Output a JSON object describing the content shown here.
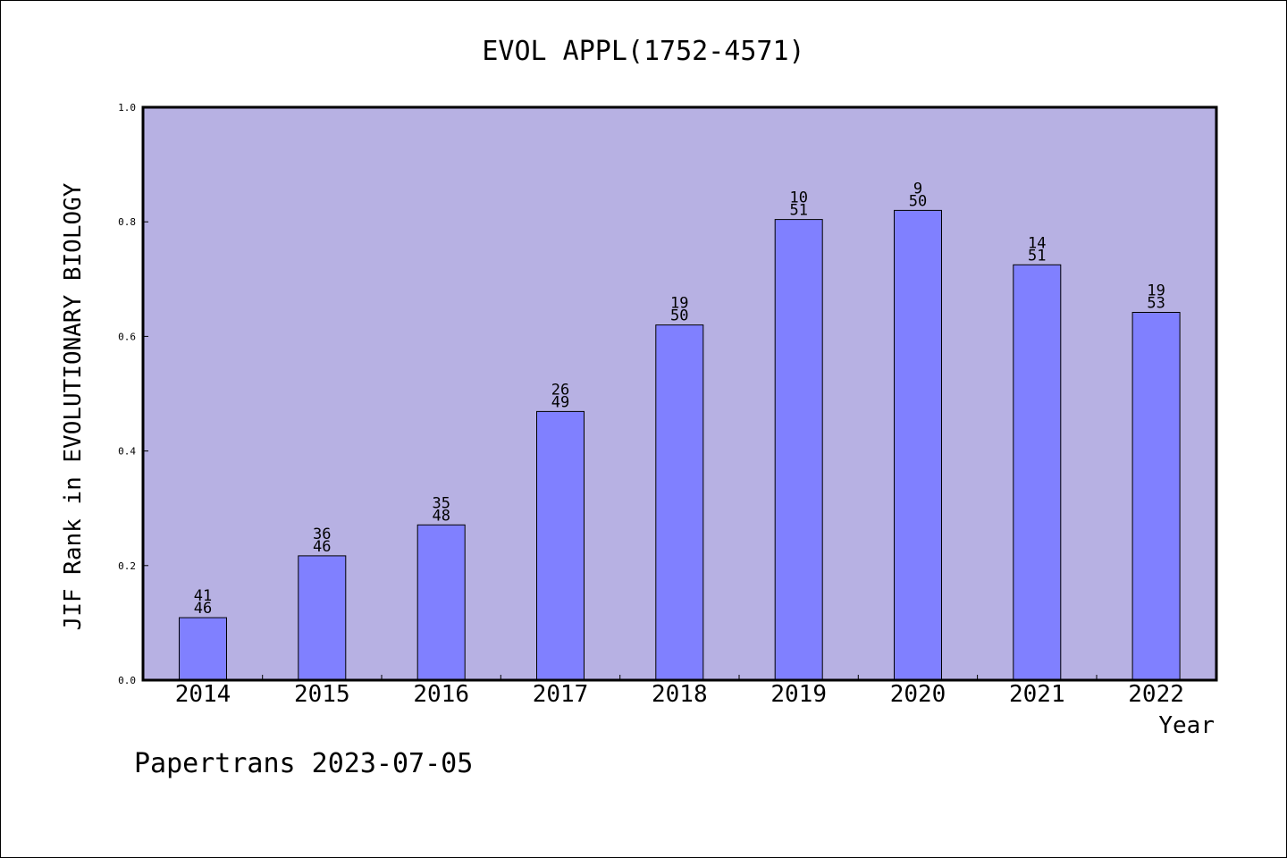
{
  "chart_data": {
    "type": "bar",
    "title": "EVOL APPL(1752-4571)",
    "xlabel": "Year",
    "ylabel": "JIF Rank in EVOLUTIONARY BIOLOGY",
    "ylim": [
      0,
      1.0
    ],
    "yticks": [
      "0.0",
      "0.2",
      "0.4",
      "0.6",
      "0.8",
      "1.0"
    ],
    "categories": [
      "2014",
      "2015",
      "2016",
      "2017",
      "2018",
      "2019",
      "2020",
      "2021",
      "2022"
    ],
    "values": [
      0.109,
      0.217,
      0.271,
      0.469,
      0.62,
      0.804,
      0.82,
      0.725,
      0.642
    ],
    "ranks": [
      "41",
      "36",
      "35",
      "26",
      "19",
      "10",
      "9",
      "14",
      "19"
    ],
    "totals": [
      "46",
      "46",
      "48",
      "49",
      "50",
      "51",
      "50",
      "51",
      "53"
    ],
    "grid": false,
    "legend": "none",
    "colors": {
      "plot_background": "#b7b1e3",
      "bar_fill": "#8080ff",
      "bar_stroke": "#000000",
      "axis": "#000000"
    }
  },
  "footer": {
    "text": "Papertrans 2023-07-05"
  }
}
